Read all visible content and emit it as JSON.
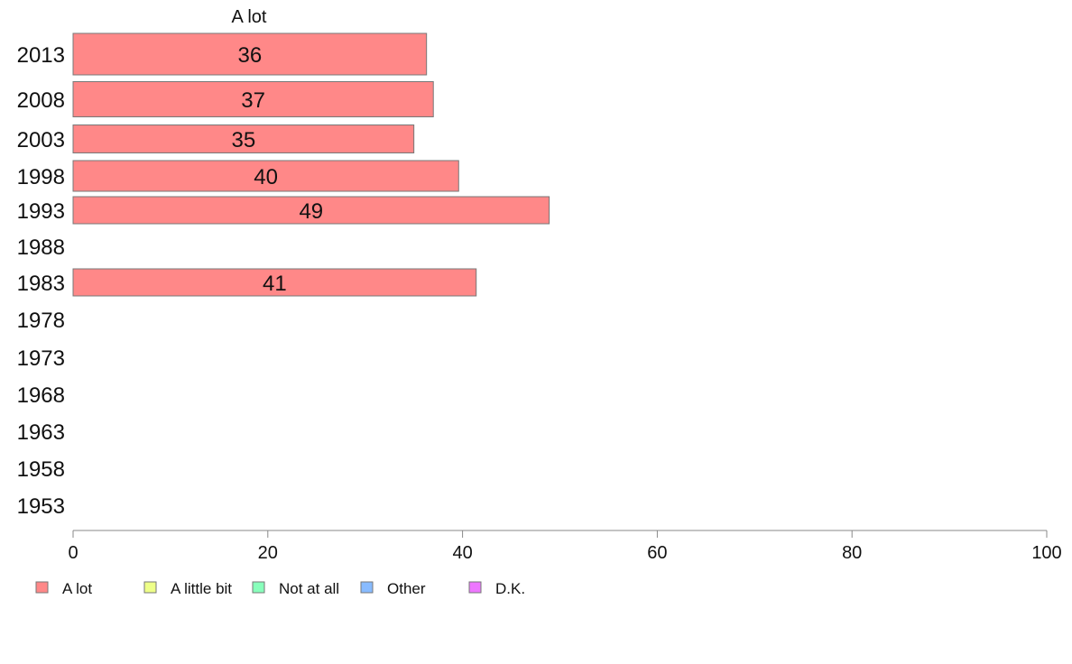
{
  "chart_data": {
    "type": "bar",
    "orientation": "horizontal",
    "title": "A lot",
    "categories": [
      "2013",
      "2008",
      "2003",
      "1998",
      "1993",
      "1988",
      "1983",
      "1978",
      "1973",
      "1968",
      "1963",
      "1958",
      "1953"
    ],
    "series": [
      {
        "name": "A lot",
        "values": [
          36.3,
          37,
          35,
          39.6,
          48.9,
          null,
          41.4,
          null,
          null,
          null,
          null,
          null,
          null
        ]
      }
    ],
    "data_labels": [
      "36",
      "37",
      "35",
      "40",
      "49",
      "",
      "41",
      "",
      "",
      "",
      "",
      "",
      ""
    ],
    "xlim": [
      0,
      100
    ],
    "xticks": [
      "0",
      "20",
      "40",
      "60",
      "80",
      "100"
    ],
    "xlabel": "",
    "ylabel": "",
    "grid": false,
    "legend": {
      "position": "bottom",
      "entries": [
        {
          "label": "A lot",
          "color": "#ff8888"
        },
        {
          "label": "A little bit",
          "color": "#eeff88"
        },
        {
          "label": "Not at all",
          "color": "#88ffbb"
        },
        {
          "label": "Other",
          "color": "#88bbff"
        },
        {
          "label": "D.K.",
          "color": "#ee77ff"
        }
      ]
    },
    "bar_color": "#ff8888"
  }
}
